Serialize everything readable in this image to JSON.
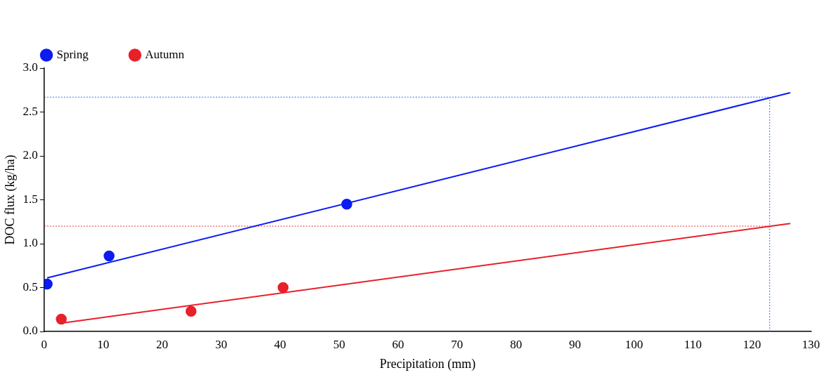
{
  "chart_data": {
    "type": "scatter",
    "xlabel": "Precipitation (mm)",
    "ylabel": "DOC flux (kg/ha)",
    "xlim": [
      0,
      130
    ],
    "xticks": [
      0,
      10,
      20,
      30,
      40,
      50,
      60,
      70,
      80,
      90,
      100,
      110,
      120,
      130
    ],
    "ylim": [
      0,
      3
    ],
    "yticks": [
      {
        "value": 0,
        "label": "0.0"
      },
      {
        "value": 0.5,
        "label": "0.5"
      },
      {
        "value": 1,
        "label": "1.0"
      },
      {
        "value": 1.5,
        "label": "1.5"
      },
      {
        "value": 2,
        "label": "2.0"
      },
      {
        "value": 2.5,
        "label": "2.5"
      },
      {
        "value": 3,
        "label": "3.0"
      }
    ],
    "grid": false,
    "legend": "top left",
    "marker": "circle",
    "series": [
      {
        "name": "Spring",
        "color": "#0a1cf0",
        "x": [
          0.5,
          11,
          51.3
        ],
        "values": [
          0.54,
          0.86,
          1.45
        ]
      },
      {
        "name": "Autumn",
        "color": "#e8202a",
        "x": [
          2.9,
          24.9,
          40.5
        ],
        "values": [
          0.14,
          0.23,
          0.5
        ]
      },
      {
        "type": "line",
        "color": "#0a1cf0",
        "marker": "none",
        "line_style": "solid",
        "x": [
          0.5,
          126.5
        ],
        "values": [
          0.61,
          2.72
        ]
      },
      {
        "type": "line",
        "color": "#e8202a",
        "marker": "none",
        "line_style": "solid",
        "x": [
          3.5,
          126.5
        ],
        "values": [
          0.1,
          1.23
        ]
      },
      {
        "type": "line",
        "color": "#3a6ee8",
        "marker": "none",
        "line_style": "dotted",
        "x": [
          0,
          123
        ],
        "values": [
          2.67,
          2.67
        ]
      },
      {
        "type": "line",
        "color": "#3a6ee8",
        "marker": "none",
        "line_style": "dotted",
        "x": [
          123,
          123
        ],
        "values": [
          0,
          2.67
        ]
      },
      {
        "type": "line",
        "color": "#e83030",
        "marker": "none",
        "line_style": "dotted",
        "x": [
          0,
          123
        ],
        "values": [
          1.2,
          1.2
        ]
      }
    ]
  }
}
